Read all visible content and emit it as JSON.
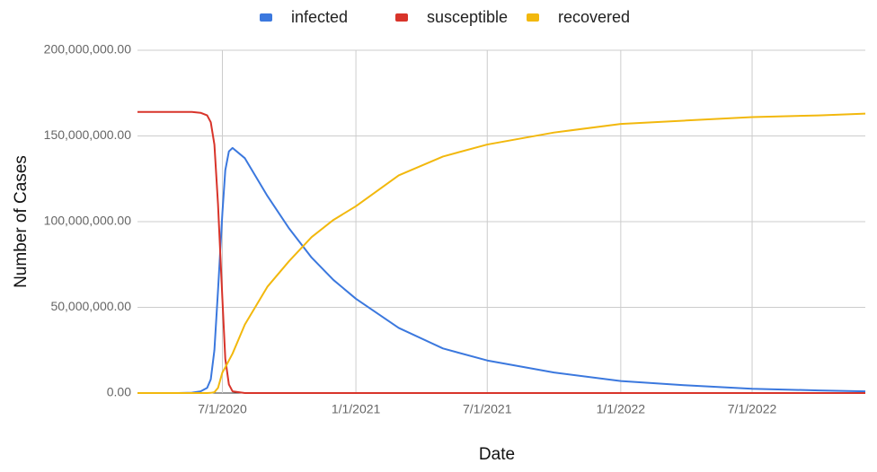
{
  "chart_data": {
    "type": "line",
    "x_label": "Date",
    "y_label": "Number of Cases",
    "x": [
      "3/6/2020",
      "4/1/2020",
      "5/1/2020",
      "5/20/2020",
      "6/1/2020",
      "6/10/2020",
      "6/15/2020",
      "6/20/2020",
      "6/25/2020",
      "7/1/2020",
      "7/5/2020",
      "7/10/2020",
      "7/15/2020",
      "8/1/2020",
      "9/1/2020",
      "10/1/2020",
      "11/1/2020",
      "12/1/2020",
      "1/1/2021",
      "3/1/2021",
      "5/1/2021",
      "7/1/2021",
      "10/1/2021",
      "1/1/2022",
      "4/1/2022",
      "7/1/2022",
      "10/1/2022",
      "12/4/2022"
    ],
    "series": [
      {
        "name": "infected",
        "color": "#3b78de",
        "values": [
          0,
          0,
          0,
          200000,
          1000000,
          3000000,
          8000000,
          25000000,
          60000000,
          105000000,
          130000000,
          141000000,
          143000000,
          137000000,
          115000000,
          96000000,
          79000000,
          66000000,
          55000000,
          38000000,
          26000000,
          19000000,
          12000000,
          7000000,
          4500000,
          2500000,
          1500000,
          1000000
        ]
      },
      {
        "name": "susceptible",
        "color": "#d8342a",
        "values": [
          164000000,
          164000000,
          164000000,
          164000000,
          163500000,
          162000000,
          158000000,
          145000000,
          110000000,
          55000000,
          20000000,
          5000000,
          1000000,
          0,
          0,
          0,
          0,
          0,
          0,
          0,
          0,
          0,
          0,
          0,
          0,
          0,
          0,
          0
        ]
      },
      {
        "name": "recovered",
        "color": "#f2b80d",
        "values": [
          0,
          0,
          0,
          0,
          0,
          0,
          100000,
          500000,
          3000000,
          12000000,
          15000000,
          19000000,
          23000000,
          40000000,
          62000000,
          77000000,
          91000000,
          101000000,
          109000000,
          127000000,
          138000000,
          145000000,
          152000000,
          157000000,
          159000000,
          161000000,
          162000000,
          163000000
        ]
      }
    ],
    "xlim": [
      "3/6/2020",
      "12/4/2022"
    ],
    "xticks": [
      "7/1/2020",
      "1/1/2021",
      "7/1/2021",
      "1/1/2022",
      "7/1/2022"
    ],
    "ylim": [
      0,
      200000000
    ],
    "yticks": [
      {
        "value": 0,
        "label": "0.00"
      },
      {
        "value": 50000000,
        "label": "50,000,000.00"
      },
      {
        "value": 100000000,
        "label": "100,000,000.00"
      },
      {
        "value": 150000000,
        "label": "150,000,000.00"
      },
      {
        "value": 200000000,
        "label": "200,000,000.00"
      }
    ],
    "grid": true,
    "legend": "top"
  }
}
